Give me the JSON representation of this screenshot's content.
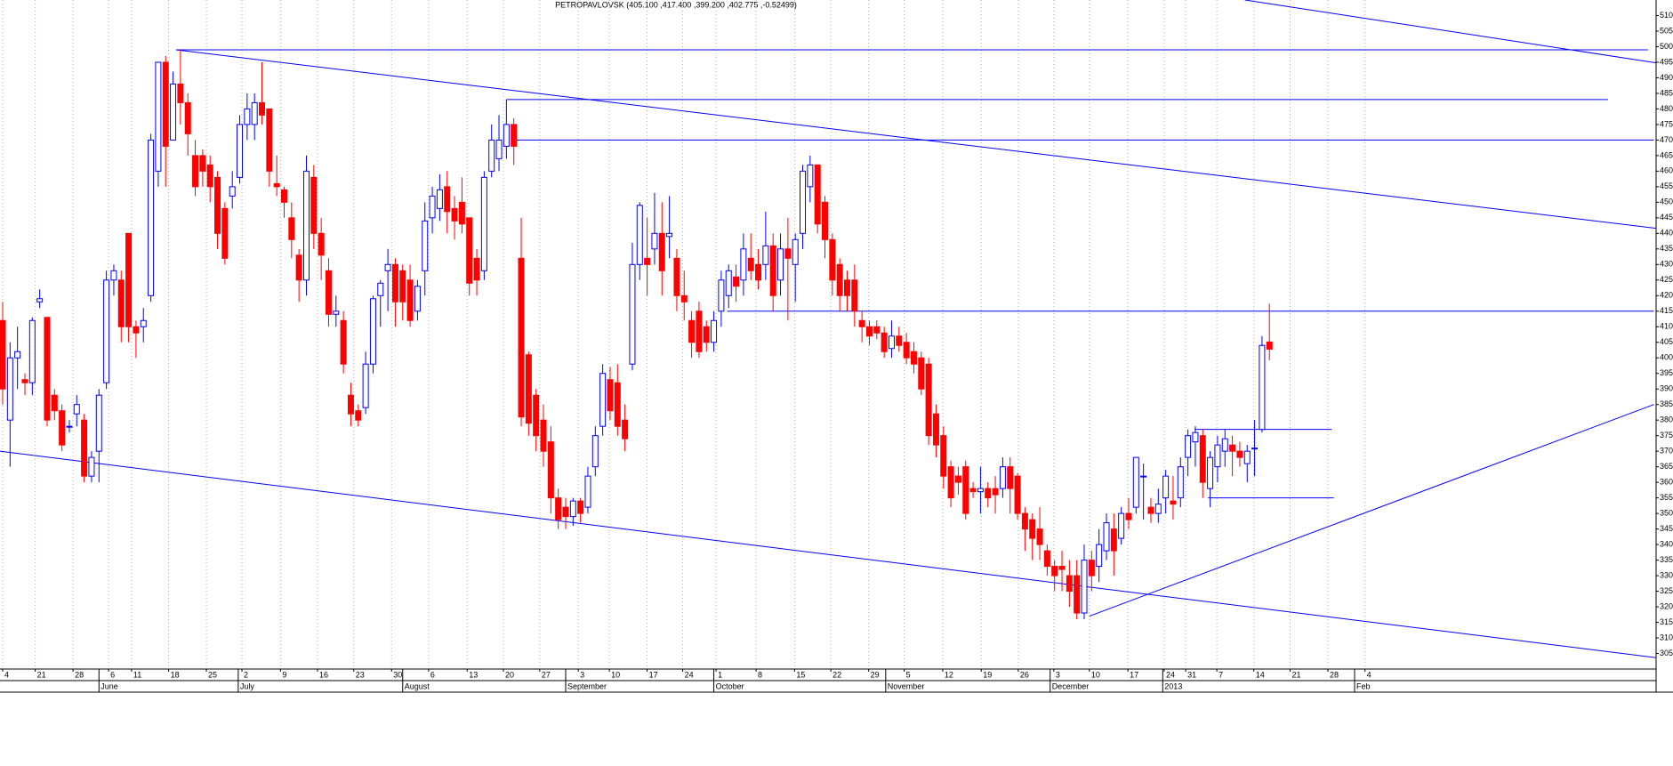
{
  "chart_data": {
    "type": "candlestick",
    "title": "PETROPAVLOVSK (405.100 ,417.400 ,399.200 ,402.775 ,-0.52499)",
    "up_color": "#ffffff",
    "down_color": "#ff0000",
    "outline_color": "#0000ff",
    "line_color": "#0000ff",
    "grid": "x",
    "xlim": [
      -0.36,
      223.2
    ],
    "ylim": [
      300,
      515
    ],
    "yticks": [
      305,
      310,
      315,
      320,
      325,
      330,
      335,
      340,
      345,
      350,
      355,
      360,
      365,
      370,
      375,
      380,
      385,
      390,
      395,
      400,
      405,
      410,
      415,
      420,
      425,
      430,
      435,
      440,
      445,
      450,
      455,
      460,
      465,
      470,
      475,
      480,
      485,
      490,
      495,
      500,
      505,
      510
    ],
    "xticks": [
      {
        "value": 0,
        "label": "4"
      },
      {
        "value": 4.4,
        "label": "21"
      },
      {
        "value": 9.5,
        "label": "28"
      },
      {
        "value": 14.3,
        "label": "6"
      },
      {
        "value": 17.4,
        "label": "11"
      },
      {
        "value": 22.4,
        "label": "18"
      },
      {
        "value": 27.5,
        "label": "25"
      },
      {
        "value": 32.3,
        "label": "2"
      },
      {
        "value": 37.5,
        "label": "9"
      },
      {
        "value": 42.5,
        "label": "16"
      },
      {
        "value": 47.4,
        "label": "23"
      },
      {
        "value": 52.5,
        "label": "30"
      },
      {
        "value": 57.5,
        "label": "6"
      },
      {
        "value": 62.7,
        "label": "13"
      },
      {
        "value": 67.6,
        "label": "20"
      },
      {
        "value": 72.5,
        "label": "27"
      },
      {
        "value": 77.7,
        "label": "3"
      },
      {
        "value": 81.9,
        "label": "10"
      },
      {
        "value": 87,
        "label": "17"
      },
      {
        "value": 91.8,
        "label": "24"
      },
      {
        "value": 96.3,
        "label": "1"
      },
      {
        "value": 101.7,
        "label": "8"
      },
      {
        "value": 106.9,
        "label": "15"
      },
      {
        "value": 111.8,
        "label": "22"
      },
      {
        "value": 116.9,
        "label": "29"
      },
      {
        "value": 121.7,
        "label": "5"
      },
      {
        "value": 126.9,
        "label": "12"
      },
      {
        "value": 132.1,
        "label": "19"
      },
      {
        "value": 137.1,
        "label": "26"
      },
      {
        "value": 141.9,
        "label": "3"
      },
      {
        "value": 146.7,
        "label": "10"
      },
      {
        "value": 151.9,
        "label": "17"
      },
      {
        "value": 156.8,
        "label": "24"
      },
      {
        "value": 159.7,
        "label": "31"
      },
      {
        "value": 163.9,
        "label": "7"
      },
      {
        "value": 168.9,
        "label": "14"
      },
      {
        "value": 173.8,
        "label": "21"
      },
      {
        "value": 178.9,
        "label": "28"
      },
      {
        "value": 183.9,
        "label": "4"
      }
    ],
    "month_ticks": [
      {
        "value": 13,
        "label": "June"
      },
      {
        "value": 31.8,
        "label": "July"
      },
      {
        "value": 54,
        "label": "August"
      },
      {
        "value": 76,
        "label": "September"
      },
      {
        "value": 96,
        "label": "October"
      },
      {
        "value": 119.2,
        "label": "November"
      },
      {
        "value": 141.4,
        "label": "December"
      },
      {
        "value": 156.6,
        "label": "2013"
      },
      {
        "value": 182.5,
        "label": "Feb"
      }
    ],
    "open": [
      412,
      380,
      400,
      393,
      392,
      418,
      413,
      388,
      383,
      378,
      382,
      380,
      362,
      370,
      392,
      425,
      425,
      440,
      410,
      410,
      420,
      460,
      495,
      470,
      488,
      482,
      465,
      465,
      462,
      458,
      448,
      452,
      458,
      475,
      475,
      482,
      480,
      456,
      454,
      445,
      433,
      425,
      458,
      440,
      428,
      414,
      412,
      388,
      383,
      384,
      398,
      420,
      428,
      430,
      428,
      425,
      415,
      428,
      445,
      448,
      455,
      448,
      450,
      445,
      432,
      428,
      460,
      464,
      468,
      475,
      432,
      401,
      388,
      380,
      373,
      355,
      352,
      349,
      354,
      352,
      365,
      378,
      393,
      392,
      380,
      398,
      430,
      432,
      435,
      440,
      439,
      432,
      420,
      412,
      415,
      410,
      405,
      415,
      420,
      426,
      425,
      432,
      430,
      430,
      436,
      425,
      435,
      430,
      440,
      455,
      462,
      450,
      438,
      430,
      425,
      425,
      412,
      410,
      410,
      408,
      403,
      407,
      405,
      402,
      400,
      398,
      382,
      375,
      365,
      362,
      365,
      358,
      357,
      358,
      358,
      358,
      365,
      362,
      350,
      348,
      345,
      338,
      333,
      333,
      330,
      330,
      318,
      335,
      333,
      338,
      345,
      342,
      350,
      352,
      362,
      352,
      350,
      355,
      354,
      355,
      368,
      373,
      375,
      358,
      365,
      370,
      372,
      370,
      366,
      371,
      377,
      405.1
    ],
    "high": [
      418,
      405,
      410,
      395,
      413,
      422,
      413,
      390,
      385,
      380,
      388,
      382,
      370,
      390,
      428,
      430,
      428,
      440,
      412,
      416,
      472,
      495,
      497,
      492,
      499,
      485,
      470,
      467,
      465,
      460,
      450,
      460,
      478,
      485,
      485,
      495,
      480,
      465,
      455,
      450,
      435,
      465,
      462,
      445,
      432,
      420,
      415,
      392,
      385,
      402,
      420,
      425,
      435,
      432,
      430,
      430,
      425,
      450,
      455,
      459,
      460,
      452,
      458,
      445,
      435,
      460,
      475,
      478,
      483,
      477,
      445,
      402,
      390,
      385,
      378,
      358,
      355,
      355,
      355,
      365,
      378,
      398,
      397,
      398,
      385,
      437,
      450,
      445,
      453,
      450,
      452,
      435,
      428,
      415,
      418,
      412,
      415,
      428,
      430,
      430,
      440,
      440,
      435,
      447,
      440,
      440,
      445,
      440,
      462,
      465,
      462,
      452,
      440,
      432,
      428,
      430,
      415,
      412,
      412,
      410,
      412,
      410,
      408,
      405,
      402,
      400,
      385,
      378,
      367,
      365,
      367,
      360,
      365,
      360,
      362,
      368,
      368,
      363,
      352,
      350,
      352,
      340,
      335,
      338,
      335,
      335,
      340,
      338,
      345,
      350,
      350,
      352,
      355,
      368,
      366,
      355,
      358,
      364,
      362,
      368,
      377,
      378,
      377,
      370,
      375,
      377,
      375,
      373,
      372,
      380,
      407,
      417.4
    ],
    "low": [
      385,
      365,
      390,
      388,
      388,
      416,
      378,
      380,
      370,
      376,
      378,
      360,
      360,
      360,
      390,
      420,
      405,
      405,
      400,
      405,
      418,
      455,
      455,
      470,
      475,
      465,
      452,
      455,
      450,
      435,
      430,
      448,
      456,
      470,
      470,
      475,
      455,
      452,
      445,
      432,
      418,
      420,
      435,
      425,
      410,
      410,
      395,
      378,
      378,
      382,
      395,
      410,
      415,
      410,
      412,
      410,
      412,
      420,
      440,
      444,
      440,
      438,
      440,
      420,
      420,
      425,
      458,
      460,
      464,
      462,
      378,
      375,
      370,
      365,
      350,
      345,
      345,
      346,
      347,
      350,
      362,
      375,
      380,
      375,
      370,
      396,
      425,
      420,
      430,
      420,
      432,
      415,
      412,
      400,
      400,
      402,
      402,
      410,
      416,
      418,
      420,
      425,
      422,
      425,
      415,
      420,
      412,
      418,
      435,
      450,
      440,
      432,
      420,
      415,
      415,
      410,
      405,
      404,
      406,
      400,
      400,
      402,
      398,
      395,
      388,
      372,
      368,
      358,
      352,
      356,
      348,
      355,
      350,
      352,
      350,
      355,
      350,
      348,
      338,
      335,
      335,
      330,
      325,
      325,
      320,
      316,
      316,
      325,
      328,
      335,
      330,
      340,
      345,
      350,
      348,
      347,
      347,
      350,
      348,
      352,
      362,
      365,
      355,
      352,
      360,
      365,
      362,
      365,
      360,
      362,
      376,
      399.2
    ],
    "close": [
      390,
      400,
      402,
      392,
      412,
      419,
      380,
      383,
      372,
      378,
      385,
      362,
      368,
      388,
      425,
      428,
      410,
      410,
      408,
      412,
      470,
      495,
      468,
      488,
      482,
      472,
      455,
      460,
      455,
      440,
      432,
      455,
      475,
      480,
      482,
      478,
      460,
      455,
      450,
      438,
      425,
      460,
      440,
      433,
      414,
      415,
      398,
      382,
      380,
      398,
      419,
      424,
      430,
      418,
      418,
      412,
      423,
      444,
      452,
      454,
      447,
      444,
      443,
      424,
      425,
      458,
      470,
      470,
      475,
      468,
      381,
      379,
      375,
      370,
      355,
      348,
      349,
      354,
      350,
      362,
      375,
      395,
      383,
      378,
      374,
      430,
      449,
      430,
      440,
      428,
      440,
      420,
      418,
      405,
      402,
      405,
      412,
      425,
      428,
      423,
      435,
      428,
      425,
      436,
      420,
      435,
      432,
      438,
      460,
      462,
      443,
      438,
      425,
      420,
      420,
      415,
      410,
      407,
      408,
      402,
      407,
      404,
      400,
      398,
      390,
      375,
      372,
      362,
      355,
      360,
      350,
      357,
      358,
      355,
      356,
      365,
      358,
      350,
      345,
      342,
      340,
      333,
      330,
      332,
      325,
      318,
      335,
      330,
      340,
      347,
      338,
      350,
      348,
      368,
      362,
      350,
      353,
      362,
      353,
      365,
      375,
      376,
      360,
      368,
      372,
      374,
      370,
      368,
      370,
      371,
      404,
      402.775
    ],
    "trendlines": [
      {
        "x": [
          23.4,
          225.4
        ],
        "y": [
          499,
          441
        ]
      },
      {
        "x": [
          -0.36,
          225.4
        ],
        "y": [
          370,
          303
        ]
      },
      {
        "x": [
          167.7,
          225.4
        ],
        "y": [
          515,
          494
        ]
      },
      {
        "x": [
          23.4,
          222.1
        ],
        "y": [
          499,
          499
        ]
      },
      {
        "x": [
          68,
          216.7
        ],
        "y": [
          483,
          483
        ]
      },
      {
        "x": [
          69,
          222.9
        ],
        "y": [
          470,
          470
        ]
      },
      {
        "x": [
          97.8,
          222.9
        ],
        "y": [
          415,
          415
        ]
      },
      {
        "x": [
          146.7,
          222.9
        ],
        "y": [
          317,
          385
        ]
      },
      {
        "x": [
          160.9,
          179.4
        ],
        "y": [
          377,
          377
        ]
      },
      {
        "x": [
          162.7,
          179.7
        ],
        "y": [
          355,
          355
        ]
      }
    ]
  }
}
